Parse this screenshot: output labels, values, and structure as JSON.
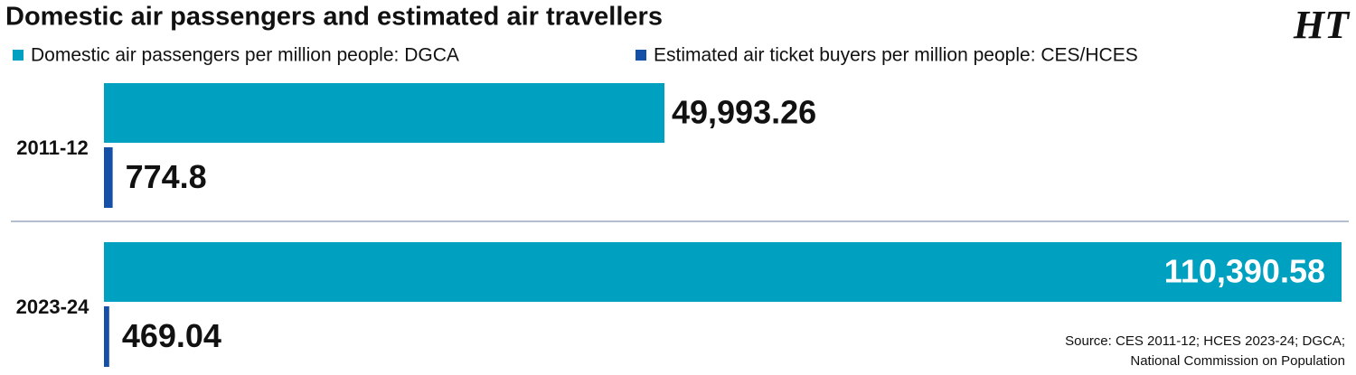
{
  "chart_data": {
    "type": "bar",
    "orientation": "horizontal",
    "title": "Domestic air passengers and estimated air travellers",
    "logo": "HT",
    "categories": [
      "2011-12",
      "2023-24"
    ],
    "series": [
      {
        "name": "Domestic air passengers per million people: DGCA",
        "color": "#00a0c0",
        "values": [
          49993.26,
          110390.58
        ],
        "value_labels": [
          "49,993.26",
          "110,390.58"
        ]
      },
      {
        "name": "Estimated air ticket buyers per million people: CES/HCES",
        "color": "#1450a8",
        "values": [
          774.8,
          469.04
        ],
        "value_labels": [
          "774.8",
          "469.04"
        ]
      }
    ],
    "source": [
      "Source: CES 2011-12; HCES 2023-24; DGCA;",
      "National Commission on Population"
    ]
  }
}
